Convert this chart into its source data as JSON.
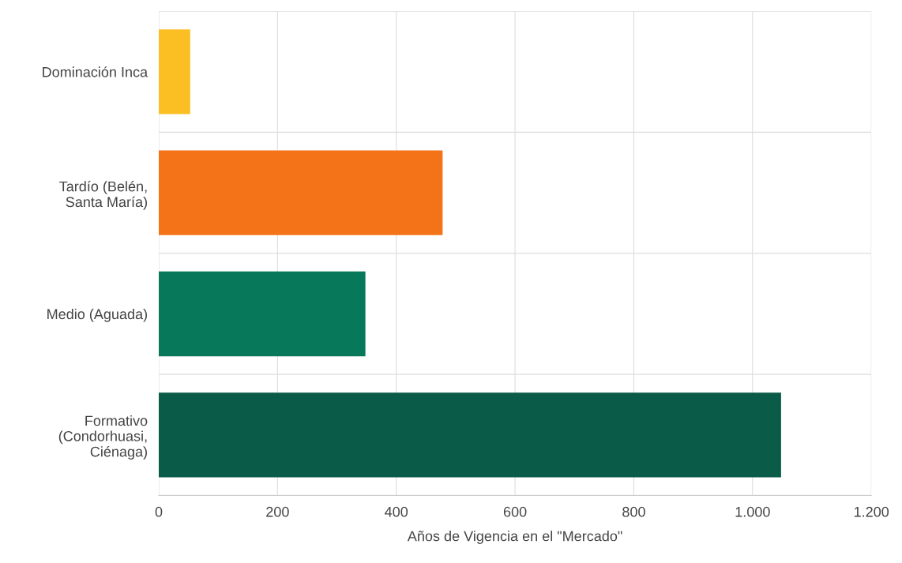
{
  "chart_data": {
    "type": "bar",
    "orientation": "horizontal",
    "xlabel": "Años de Vigencia en el \"Mercado\"",
    "categories": [
      "Dominación Inca",
      "Tardío (Belén,\nSanta María)",
      "Medio (Aguada)",
      "Formativo\n(Condorhuasi,\nCiénaga)"
    ],
    "values": [
      53,
      478,
      348,
      1048
    ],
    "colors": [
      "#fbbf24",
      "#f57318",
      "#08785a",
      "#0a5c48"
    ],
    "xlim": [
      0,
      1200
    ],
    "xticks": [
      0,
      200,
      400,
      600,
      800,
      {
        "value": 1000,
        "label": "1.000"
      },
      {
        "value": 1200,
        "label": "1.200"
      }
    ],
    "grid": true
  }
}
